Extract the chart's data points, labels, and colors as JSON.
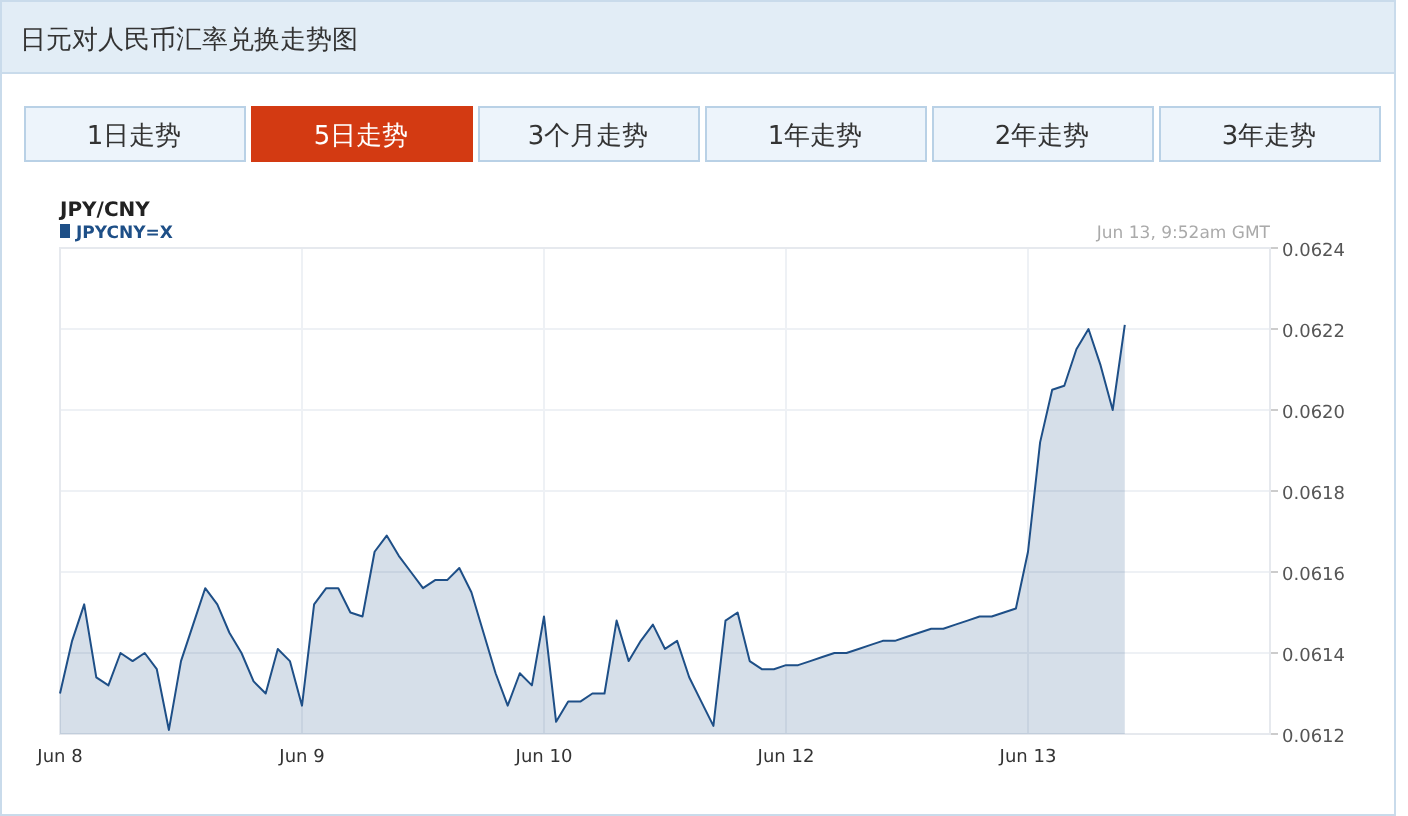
{
  "chart_data": {
    "type": "area",
    "title": "日元对人民币汇率兑换走势图",
    "subtitle": "JPY/CNY",
    "annotations": [
      "1日走势",
      "5日走势",
      "3个月走势",
      "1年走势",
      "2年走势",
      "3年走势",
      "Jun 13, 9:52am GMT"
    ],
    "legend": "top left",
    "grid": true,
    "categories": [
      "Jun 8",
      null,
      null,
      null,
      null,
      null,
      null,
      null,
      null,
      null,
      null,
      null,
      null,
      null,
      null,
      null,
      null,
      null,
      null,
      null,
      "Jun 9",
      null,
      null,
      null,
      null,
      null,
      null,
      null,
      null,
      null,
      null,
      null,
      null,
      null,
      null,
      null,
      null,
      null,
      null,
      null,
      "Jun 10",
      null,
      null,
      null,
      null,
      null,
      null,
      null,
      null,
      null,
      null,
      null,
      null,
      null,
      null,
      null,
      null,
      null,
      null,
      null,
      "Jun 12",
      null,
      null,
      null,
      null,
      null,
      null,
      null,
      null,
      null,
      null,
      null,
      null,
      null,
      null,
      null,
      null,
      null,
      null,
      null,
      "Jun 13",
      null,
      null,
      null,
      null,
      null,
      null,
      null,
      null,
      null,
      null,
      null,
      null,
      null,
      null,
      null,
      null,
      null,
      null,
      null
    ],
    "ylim": [
      0.0612,
      0.0624
    ],
    "yticks": [
      {
        "value": 0.0612,
        "label": "0.0612"
      },
      {
        "value": 0.0614,
        "label": "0.0614"
      },
      {
        "value": 0.0616,
        "label": "0.0616"
      },
      {
        "value": 0.0618,
        "label": "0.0618"
      },
      {
        "value": 0.062,
        "label": "0.0620"
      },
      {
        "value": 0.0622,
        "label": "0.0622"
      },
      {
        "value": 0.0624,
        "label": "0.0624"
      }
    ],
    "series": [
      {
        "name": "JPYCNY=X",
        "color": "#1e4f87",
        "values": [
          0.0613,
          0.06143,
          0.06152,
          0.06134,
          0.06132,
          0.0614,
          0.06138,
          0.0614,
          0.06136,
          0.06121,
          0.06138,
          0.06147,
          0.06156,
          0.06152,
          0.06145,
          0.0614,
          0.06133,
          0.0613,
          0.06141,
          0.06138,
          0.06127,
          0.06152,
          0.06156,
          0.06156,
          0.0615,
          0.06149,
          0.06165,
          0.06169,
          0.06164,
          0.0616,
          0.06156,
          0.06158,
          0.06158,
          0.06161,
          0.06155,
          0.06145,
          0.06135,
          0.06127,
          0.06135,
          0.06132,
          0.06149,
          0.06123,
          0.06128,
          0.06128,
          0.0613,
          0.0613,
          0.06148,
          0.06138,
          0.06143,
          0.06147,
          0.06141,
          0.06143,
          0.06134,
          0.06128,
          0.06122,
          0.06148,
          0.0615,
          0.06138,
          0.06136,
          0.06136,
          0.06137,
          0.06137,
          0.06138,
          0.06139,
          0.0614,
          0.0614,
          0.06141,
          0.06142,
          0.06143,
          0.06143,
          0.06144,
          0.06145,
          0.06146,
          0.06146,
          0.06147,
          0.06148,
          0.06149,
          0.06149,
          0.0615,
          0.06151,
          0.06165,
          0.06192,
          0.06205,
          0.06206,
          0.06215,
          0.0622,
          0.06211,
          0.062,
          0.06221,
          null,
          null,
          null,
          null,
          null,
          null,
          null,
          null,
          null,
          null,
          null
        ]
      }
    ]
  }
}
